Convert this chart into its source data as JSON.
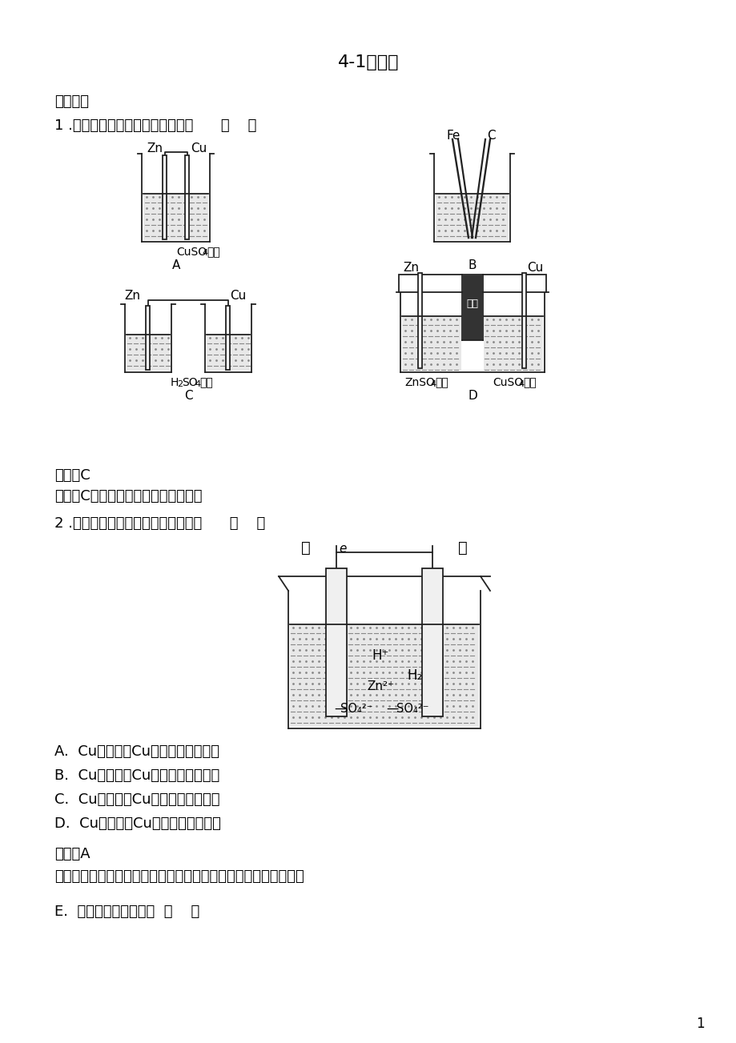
{
  "title": "4-1原电池",
  "section1": "、选择题",
  "q1": "1 .下列装置不可以组成原电池的是      （    ）",
  "q1_ans": "答案：C",
  "q1_tip": "点拨：C中的装置不能形成闭合回路。",
  "q2": "2 .如图所示装置，下列说法正确的是      （    ）",
  "q2_opts": [
    "A.  Cu为正极，Cu片上发生还原反应",
    "B.  Cu为正极，Cu片上发生氧化反应",
    "C.  Cu为负极，Cu片上发生还原反应",
    "D.  Cu为负极，Cu片上发生氧化反应"
  ],
  "q2_ans": "答案：A",
  "q2_tip": "点拨：原电池中活泼性较差的一极作正极，正极上发生还原反应。",
  "q3_label": "E.  下列叙述中正确的是  （    ）",
  "page_num": "1",
  "bg_color": "#ffffff",
  "lc": "#222222",
  "liq_bg": "#e8e8e8",
  "liq_dot": "#888888",
  "salt_fill": "#333333"
}
